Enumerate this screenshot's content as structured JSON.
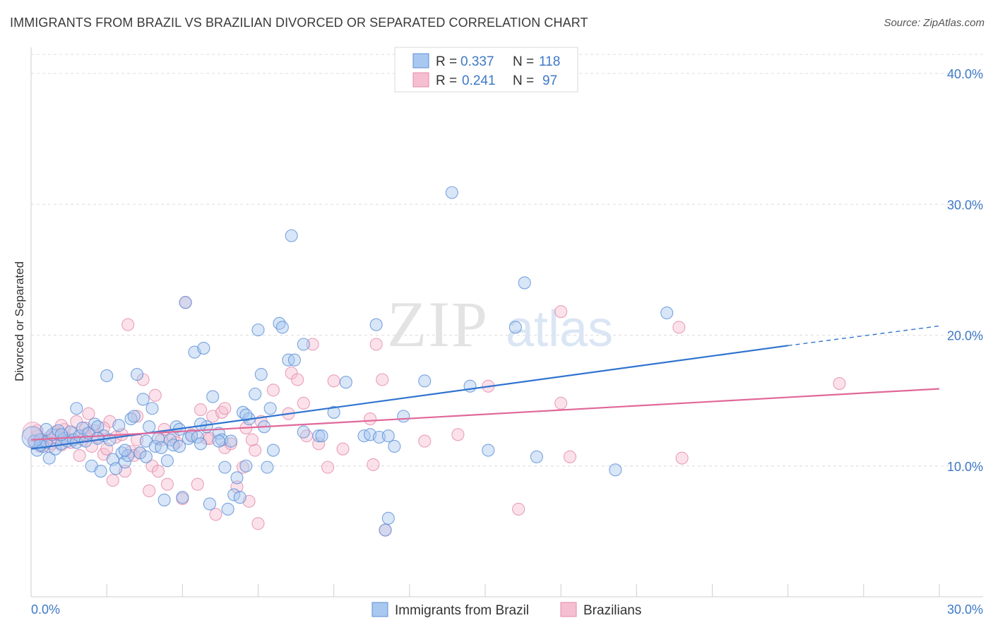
{
  "header": {
    "title": "IMMIGRANTS FROM BRAZIL VS BRAZILIAN DIVORCED OR SEPARATED CORRELATION CHART",
    "source": "Source: ZipAtlas.com"
  },
  "watermark": {
    "zip": "ZIP",
    "atlas": "atlas"
  },
  "colors": {
    "blue_fill": "#a9c8f0",
    "blue_stroke": "#5b8fd6",
    "blue_line": "#2f74d0",
    "pink_fill": "#f6bfd1",
    "pink_stroke": "#e58aaa",
    "pink_line": "#e0689a",
    "axis_label": "#3d79c6",
    "grid": "#dcdcdc"
  },
  "legend": {
    "rows": [
      {
        "r_label": "R =",
        "r_value": "0.337",
        "n_label": "N =",
        "n_value": "118"
      },
      {
        "r_label": "R =",
        "r_value": "0.241",
        "n_label": "N =",
        "n_value": "97"
      }
    ]
  },
  "chart_data": {
    "type": "scatter",
    "title": "IMMIGRANTS FROM BRAZIL VS BRAZILIAN DIVORCED OR SEPARATED CORRELATION CHART",
    "xlabel": "",
    "ylabel": "Divorced or Separated",
    "xlim": [
      0,
      30
    ],
    "ylim": [
      0,
      42
    ],
    "x_tick_labels": [
      "0.0%",
      "30.0%"
    ],
    "y_ticks": [
      10,
      20,
      30,
      40
    ],
    "y_tick_labels": [
      "10.0%",
      "20.0%",
      "30.0%",
      "40.0%"
    ],
    "grid": true,
    "legend_position": "top-center",
    "bottom_legend": [
      "Immigrants from Brazil",
      "Brazilians"
    ],
    "series": [
      {
        "name": "Immigrants from Brazil",
        "color": "#a9c8f0",
        "r": 0.337,
        "n": 118,
        "trend": {
          "x0": 0,
          "y0": 11.3,
          "x1": 25,
          "y1": 19.2,
          "dashed_to_x": 30,
          "dashed_to_y": 20.7
        },
        "points": [
          [
            0.1,
            11.9
          ],
          [
            0.2,
            11.2
          ],
          [
            0.3,
            12.0
          ],
          [
            0.4,
            11.5
          ],
          [
            0.5,
            11.8
          ],
          [
            0.6,
            10.6
          ],
          [
            0.7,
            12.4
          ],
          [
            0.8,
            11.3
          ],
          [
            0.9,
            12.7
          ],
          [
            1.0,
            11.7
          ],
          [
            1.1,
            12.1
          ],
          [
            1.2,
            11.9
          ],
          [
            1.3,
            12.6
          ],
          [
            1.4,
            12.0
          ],
          [
            1.5,
            11.8
          ],
          [
            1.6,
            12.3
          ],
          [
            1.7,
            12.9
          ],
          [
            1.8,
            11.9
          ],
          [
            1.9,
            12.5
          ],
          [
            2.0,
            10.0
          ],
          [
            2.1,
            13.2
          ],
          [
            2.2,
            13.0
          ],
          [
            2.3,
            9.6
          ],
          [
            2.4,
            12.3
          ],
          [
            2.5,
            16.9
          ],
          [
            2.6,
            12.0
          ],
          [
            2.7,
            10.5
          ],
          [
            2.8,
            9.8
          ],
          [
            2.9,
            13.1
          ],
          [
            3.0,
            11.0
          ],
          [
            3.1,
            10.3
          ],
          [
            3.2,
            10.8
          ],
          [
            3.3,
            13.6
          ],
          [
            3.4,
            13.8
          ],
          [
            3.5,
            17.0
          ],
          [
            3.6,
            11.0
          ],
          [
            3.7,
            15.1
          ],
          [
            3.8,
            11.9
          ],
          [
            3.9,
            13.0
          ],
          [
            4.0,
            14.4
          ],
          [
            4.1,
            11.5
          ],
          [
            4.2,
            12.1
          ],
          [
            4.3,
            11.4
          ],
          [
            4.4,
            7.4
          ],
          [
            4.5,
            10.4
          ],
          [
            4.6,
            12.0
          ],
          [
            4.7,
            11.6
          ],
          [
            4.8,
            13.0
          ],
          [
            4.9,
            12.8
          ],
          [
            5.0,
            7.6
          ],
          [
            5.1,
            22.5
          ],
          [
            5.2,
            12.1
          ],
          [
            5.3,
            12.3
          ],
          [
            5.4,
            18.7
          ],
          [
            5.5,
            12.2
          ],
          [
            5.6,
            11.7
          ],
          [
            5.7,
            19.0
          ],
          [
            5.8,
            13.0
          ],
          [
            5.9,
            7.1
          ],
          [
            6.0,
            15.3
          ],
          [
            6.2,
            12.5
          ],
          [
            6.3,
            12.0
          ],
          [
            6.4,
            9.9
          ],
          [
            6.5,
            6.7
          ],
          [
            6.6,
            11.9
          ],
          [
            6.7,
            7.8
          ],
          [
            6.8,
            9.1
          ],
          [
            6.9,
            7.6
          ],
          [
            7.0,
            14.1
          ],
          [
            7.1,
            10.0
          ],
          [
            7.2,
            13.6
          ],
          [
            7.4,
            15.5
          ],
          [
            7.5,
            20.4
          ],
          [
            7.6,
            17.0
          ],
          [
            7.7,
            13.0
          ],
          [
            7.8,
            9.9
          ],
          [
            8.0,
            11.2
          ],
          [
            8.2,
            20.9
          ],
          [
            8.3,
            20.6
          ],
          [
            8.5,
            18.1
          ],
          [
            8.6,
            27.6
          ],
          [
            8.7,
            18.1
          ],
          [
            9.0,
            19.3
          ],
          [
            9.5,
            12.3
          ],
          [
            9.6,
            12.3
          ],
          [
            10.0,
            14.1
          ],
          [
            10.4,
            16.4
          ],
          [
            11.0,
            12.3
          ],
          [
            11.2,
            12.4
          ],
          [
            11.5,
            12.2
          ],
          [
            11.4,
            20.8
          ],
          [
            11.8,
            12.3
          ],
          [
            12.0,
            11.5
          ],
          [
            11.8,
            6.0
          ],
          [
            11.7,
            5.1
          ],
          [
            12.3,
            13.8
          ],
          [
            13.0,
            16.5
          ],
          [
            13.9,
            30.9
          ],
          [
            14.5,
            16.1
          ],
          [
            15.1,
            11.2
          ],
          [
            16.0,
            20.6
          ],
          [
            16.3,
            24.0
          ],
          [
            16.7,
            10.7
          ],
          [
            19.3,
            9.7
          ],
          [
            21.0,
            21.7
          ],
          [
            0.5,
            12.8
          ],
          [
            1.0,
            12.4
          ],
          [
            1.5,
            14.4
          ],
          [
            2.2,
            12.1
          ],
          [
            3.1,
            11.2
          ],
          [
            3.8,
            10.7
          ],
          [
            4.9,
            11.5
          ],
          [
            5.6,
            13.2
          ],
          [
            6.2,
            11.9
          ],
          [
            7.1,
            13.9
          ],
          [
            7.9,
            14.4
          ],
          [
            9.0,
            12.6
          ],
          [
            0.3,
            11.6
          ]
        ]
      },
      {
        "name": "Brazilians",
        "color": "#f6bfd1",
        "r": 0.241,
        "n": 97,
        "trend": {
          "x0": 0,
          "y0": 12.0,
          "x1": 30,
          "y1": 15.9
        },
        "points": [
          [
            0.1,
            11.8
          ],
          [
            0.2,
            12.3
          ],
          [
            0.3,
            11.5
          ],
          [
            0.4,
            12.0
          ],
          [
            0.5,
            11.9
          ],
          [
            0.6,
            12.2
          ],
          [
            0.7,
            11.7
          ],
          [
            0.8,
            12.6
          ],
          [
            0.9,
            12.4
          ],
          [
            1.0,
            11.6
          ],
          [
            1.1,
            12.8
          ],
          [
            1.2,
            12.1
          ],
          [
            1.3,
            11.8
          ],
          [
            1.4,
            12.5
          ],
          [
            1.5,
            13.4
          ],
          [
            1.6,
            10.8
          ],
          [
            1.7,
            12.0
          ],
          [
            1.8,
            12.9
          ],
          [
            1.9,
            14.0
          ],
          [
            2.0,
            11.5
          ],
          [
            2.1,
            12.7
          ],
          [
            2.2,
            12.2
          ],
          [
            2.4,
            10.9
          ],
          [
            2.5,
            11.3
          ],
          [
            2.6,
            13.4
          ],
          [
            2.7,
            8.9
          ],
          [
            2.8,
            12.2
          ],
          [
            3.0,
            12.4
          ],
          [
            3.1,
            9.6
          ],
          [
            3.2,
            20.8
          ],
          [
            3.3,
            11.1
          ],
          [
            3.4,
            10.8
          ],
          [
            3.5,
            12.0
          ],
          [
            3.6,
            11.0
          ],
          [
            3.7,
            16.6
          ],
          [
            3.9,
            8.1
          ],
          [
            4.0,
            10.0
          ],
          [
            4.1,
            15.4
          ],
          [
            4.2,
            9.6
          ],
          [
            4.3,
            12.0
          ],
          [
            4.5,
            8.6
          ],
          [
            4.7,
            12.2
          ],
          [
            4.8,
            11.8
          ],
          [
            5.0,
            7.5
          ],
          [
            5.1,
            22.5
          ],
          [
            5.3,
            12.4
          ],
          [
            5.5,
            8.6
          ],
          [
            5.6,
            14.3
          ],
          [
            5.8,
            12.1
          ],
          [
            6.0,
            13.8
          ],
          [
            6.1,
            6.3
          ],
          [
            6.3,
            14.1
          ],
          [
            6.4,
            11.4
          ],
          [
            6.6,
            11.7
          ],
          [
            6.8,
            8.4
          ],
          [
            7.0,
            9.9
          ],
          [
            7.1,
            12.9
          ],
          [
            7.2,
            7.3
          ],
          [
            7.4,
            11.2
          ],
          [
            7.5,
            5.6
          ],
          [
            7.6,
            13.4
          ],
          [
            8.0,
            15.8
          ],
          [
            8.5,
            14.0
          ],
          [
            8.6,
            17.1
          ],
          [
            8.8,
            16.6
          ],
          [
            9.0,
            14.8
          ],
          [
            9.1,
            12.3
          ],
          [
            9.3,
            19.3
          ],
          [
            9.5,
            11.7
          ],
          [
            9.8,
            9.9
          ],
          [
            10.0,
            16.5
          ],
          [
            10.3,
            11.3
          ],
          [
            11.2,
            13.6
          ],
          [
            11.4,
            19.3
          ],
          [
            11.6,
            16.6
          ],
          [
            11.3,
            10.1
          ],
          [
            13.0,
            11.9
          ],
          [
            14.1,
            12.4
          ],
          [
            15.1,
            16.1
          ],
          [
            16.1,
            6.7
          ],
          [
            17.5,
            21.8
          ],
          [
            17.5,
            14.8
          ],
          [
            17.8,
            10.7
          ],
          [
            21.4,
            20.6
          ],
          [
            21.5,
            10.6
          ],
          [
            26.7,
            16.3
          ],
          [
            0.2,
            12.7
          ],
          [
            0.6,
            11.5
          ],
          [
            1.0,
            13.1
          ],
          [
            1.8,
            12.4
          ],
          [
            2.4,
            12.9
          ],
          [
            3.5,
            13.8
          ],
          [
            4.4,
            12.8
          ],
          [
            5.9,
            12.1
          ],
          [
            6.4,
            14.4
          ],
          [
            7.3,
            12.0
          ],
          [
            11.7,
            5.1
          ]
        ]
      }
    ]
  }
}
